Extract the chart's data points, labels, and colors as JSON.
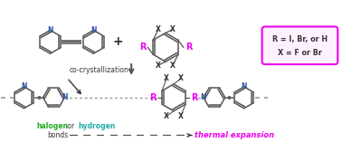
{
  "bg_color": "#ffffff",
  "magenta": "#EE00EE",
  "blue_n": "#3355AA",
  "green": "#22AA22",
  "teal": "#22AAAA",
  "gray": "#999999",
  "dark": "#333333",
  "dark2": "#555555",
  "box_border": "#EE00EE",
  "legend_line1": "R = I, Br, or H",
  "legend_line2": "X = F or Br",
  "co_cryst": "co-crystallization",
  "figsize": [
    3.78,
    1.68
  ],
  "dpi": 100
}
